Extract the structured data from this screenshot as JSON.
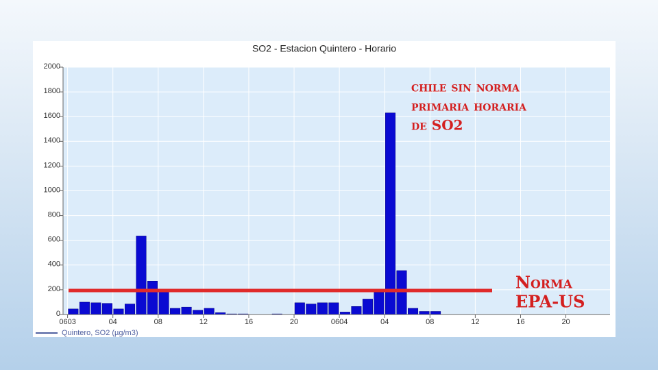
{
  "chart_data": {
    "type": "bar",
    "title": "SO2 - Estacion Quintero - Horario",
    "x": [
      0,
      1,
      2,
      3,
      4,
      5,
      6,
      7,
      8,
      9,
      10,
      11,
      12,
      13,
      14,
      15,
      16,
      17,
      18,
      19,
      20,
      21,
      22,
      23,
      24,
      25,
      26,
      27,
      28,
      29,
      30,
      31,
      32
    ],
    "series": [
      {
        "name": "Quintero, SO2 (µg/m3)",
        "color": "#0a0ad2",
        "values": [
          45,
          100,
          95,
          90,
          45,
          85,
          635,
          270,
          190,
          50,
          60,
          35,
          50,
          15,
          5,
          5,
          0,
          0,
          5,
          0,
          95,
          85,
          95,
          95,
          20,
          65,
          125,
          180,
          1630,
          355,
          50,
          25,
          25
        ]
      }
    ],
    "xlim": [
      -0.4,
      47.9
    ],
    "xticks": [
      {
        "value": 0,
        "label": "0603"
      },
      {
        "value": 4,
        "label": "04"
      },
      {
        "value": 8,
        "label": "08"
      },
      {
        "value": 12,
        "label": "12"
      },
      {
        "value": 16,
        "label": "16"
      },
      {
        "value": 20,
        "label": "20"
      },
      {
        "value": 24,
        "label": "0604"
      },
      {
        "value": 28,
        "label": "04"
      },
      {
        "value": 32,
        "label": "08"
      },
      {
        "value": 36,
        "label": "12"
      },
      {
        "value": 40,
        "label": "16"
      },
      {
        "value": 44,
        "label": "20"
      }
    ],
    "ylim": [
      0,
      2000
    ],
    "yticks": [
      0,
      200,
      400,
      600,
      800,
      1000,
      1200,
      1400,
      1600,
      1800,
      2000
    ],
    "grid": true,
    "annotations": [
      [
        "chile sin norma",
        "primaria horaria",
        "de SO2"
      ],
      [
        "Norma",
        "EPA-US"
      ]
    ]
  }
}
